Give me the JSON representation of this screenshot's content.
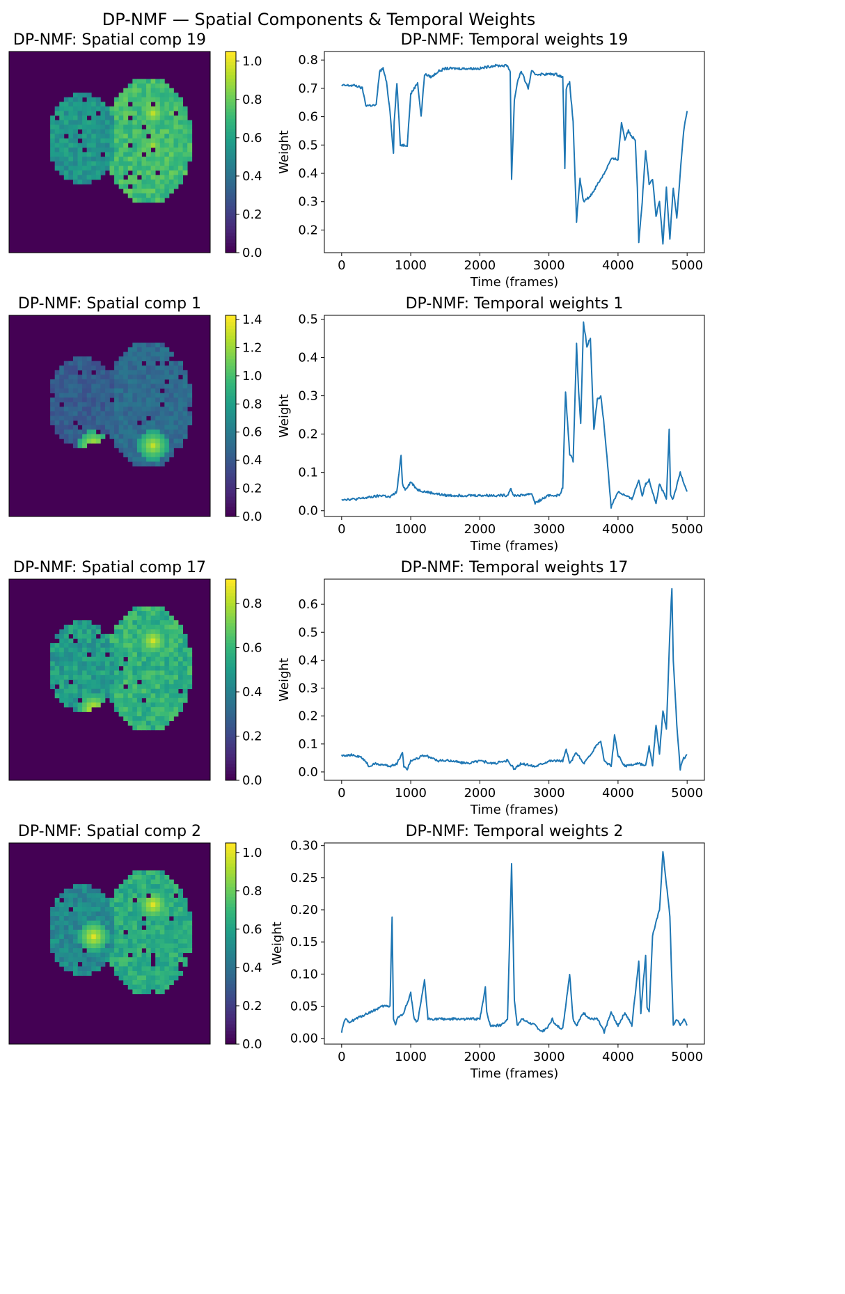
{
  "suptitle": "DP-NMF — Spatial Components & Temporal Weights",
  "colors": {
    "line": "#1f77b4",
    "background": "#440154"
  },
  "colormap": [
    "#440154",
    "#482878",
    "#3e4989",
    "#31688e",
    "#26828e",
    "#1f9e89",
    "#35b779",
    "#6ece58",
    "#b5de2b",
    "#fde725"
  ],
  "chart_data": [
    {
      "type": "heatmap",
      "title": "DP-NMF: Spatial comp 19",
      "colorbar_range": [
        0,
        1.05
      ],
      "colorbar_ticks": [
        0.0,
        0.2,
        0.4,
        0.6,
        0.8,
        1.0
      ],
      "colorbar_tick_labels": [
        "0.0",
        "0.2",
        "0.4",
        "0.6",
        "0.8",
        "1.0"
      ],
      "left_hemisphere_level": 0.55,
      "right_hemisphere_level": 0.72,
      "hotspots": [
        {
          "region": "right-upper",
          "value": 0.95
        },
        {
          "region": "right-middle",
          "value": 0.9
        }
      ]
    },
    {
      "type": "line",
      "title": "DP-NMF: Temporal weights 19",
      "xlabel": "Time (frames)",
      "ylabel": "Weight",
      "xlim": [
        -250,
        5250
      ],
      "ylim": [
        0.12,
        0.83
      ],
      "xticks": [
        0,
        1000,
        2000,
        3000,
        4000,
        5000
      ],
      "xtick_labels": [
        "0",
        "1000",
        "2000",
        "3000",
        "4000",
        "5000"
      ],
      "yticks": [
        0.2,
        0.3,
        0.4,
        0.5,
        0.6,
        0.7,
        0.8
      ],
      "ytick_labels": [
        "0.2",
        "0.3",
        "0.4",
        "0.5",
        "0.6",
        "0.7",
        "0.8"
      ],
      "series": [
        {
          "x": [
            0,
            100,
            200,
            300,
            350,
            400,
            500,
            550,
            600,
            650,
            700,
            750,
            760,
            800,
            850,
            900,
            950,
            1000,
            1050,
            1100,
            1150,
            1200,
            1300,
            1400,
            1500,
            1700,
            2000,
            2200,
            2400,
            2440,
            2460,
            2500,
            2550,
            2600,
            2700,
            2750,
            2800,
            2850,
            2900,
            3000,
            3100,
            3200,
            3230,
            3250,
            3300,
            3350,
            3400,
            3450,
            3500,
            3600,
            3700,
            3800,
            3900,
            4000,
            4050,
            4100,
            4150,
            4200,
            4250,
            4280,
            4300,
            4350,
            4400,
            4450,
            4500,
            4550,
            4600,
            4650,
            4700,
            4750,
            4800,
            4850,
            4900,
            4950,
            5000
          ],
          "y": [
            0.71,
            0.71,
            0.71,
            0.7,
            0.64,
            0.64,
            0.64,
            0.76,
            0.77,
            0.72,
            0.62,
            0.47,
            0.58,
            0.72,
            0.5,
            0.5,
            0.5,
            0.68,
            0.7,
            0.72,
            0.6,
            0.75,
            0.74,
            0.76,
            0.77,
            0.77,
            0.77,
            0.78,
            0.78,
            0.76,
            0.38,
            0.66,
            0.73,
            0.76,
            0.7,
            0.76,
            0.75,
            0.75,
            0.75,
            0.75,
            0.75,
            0.74,
            0.42,
            0.7,
            0.72,
            0.58,
            0.23,
            0.38,
            0.3,
            0.32,
            0.36,
            0.4,
            0.45,
            0.45,
            0.58,
            0.52,
            0.55,
            0.53,
            0.52,
            0.35,
            0.16,
            0.3,
            0.48,
            0.36,
            0.38,
            0.25,
            0.3,
            0.15,
            0.35,
            0.17,
            0.35,
            0.24,
            0.4,
            0.55,
            0.62
          ]
        }
      ]
    },
    {
      "type": "heatmap",
      "title": "DP-NMF: Spatial comp 1",
      "colorbar_range": [
        0,
        1.43
      ],
      "colorbar_ticks": [
        0.0,
        0.2,
        0.4,
        0.6,
        0.8,
        1.0,
        1.2,
        1.4
      ],
      "colorbar_tick_labels": [
        "0.0",
        "0.2",
        "0.4",
        "0.6",
        "0.8",
        "1.0",
        "1.2",
        "1.4"
      ],
      "left_hemisphere_level": 0.42,
      "right_hemisphere_level": 0.5,
      "hotspots": [
        {
          "region": "left-lower",
          "value": 1.35
        },
        {
          "region": "right-lower",
          "value": 1.3
        }
      ]
    },
    {
      "type": "line",
      "title": "DP-NMF: Temporal weights 1",
      "xlabel": "Time (frames)",
      "ylabel": "Weight",
      "xlim": [
        -250,
        5250
      ],
      "ylim": [
        -0.015,
        0.51
      ],
      "xticks": [
        0,
        1000,
        2000,
        3000,
        4000,
        5000
      ],
      "xtick_labels": [
        "0",
        "1000",
        "2000",
        "3000",
        "4000",
        "5000"
      ],
      "yticks": [
        0.0,
        0.1,
        0.2,
        0.3,
        0.4,
        0.5
      ],
      "ytick_labels": [
        "0.0",
        "0.1",
        "0.2",
        "0.3",
        "0.4",
        "0.5"
      ],
      "series": [
        {
          "x": [
            0,
            200,
            400,
            600,
            700,
            800,
            860,
            880,
            920,
            1000,
            1100,
            1200,
            1500,
            2000,
            2400,
            2450,
            2480,
            2600,
            2750,
            2800,
            3000,
            3150,
            3200,
            3240,
            3300,
            3350,
            3400,
            3430,
            3460,
            3500,
            3550,
            3600,
            3650,
            3700,
            3750,
            3800,
            3850,
            3900,
            4000,
            4200,
            4300,
            4350,
            4400,
            4450,
            4500,
            4550,
            4600,
            4700,
            4740,
            4760,
            4800,
            4900,
            5000
          ],
          "y": [
            0.03,
            0.03,
            0.035,
            0.04,
            0.035,
            0.05,
            0.145,
            0.07,
            0.055,
            0.075,
            0.055,
            0.05,
            0.04,
            0.04,
            0.04,
            0.06,
            0.04,
            0.04,
            0.045,
            0.02,
            0.04,
            0.04,
            0.06,
            0.31,
            0.15,
            0.13,
            0.435,
            0.31,
            0.23,
            0.49,
            0.43,
            0.45,
            0.21,
            0.29,
            0.3,
            0.22,
            0.12,
            0.01,
            0.05,
            0.03,
            0.08,
            0.04,
            0.07,
            0.08,
            0.05,
            0.02,
            0.07,
            0.03,
            0.21,
            0.04,
            0.03,
            0.1,
            0.05
          ]
        }
      ]
    },
    {
      "type": "heatmap",
      "title": "DP-NMF: Spatial comp 17",
      "colorbar_range": [
        0,
        0.91
      ],
      "colorbar_ticks": [
        0.0,
        0.2,
        0.4,
        0.6,
        0.8
      ],
      "colorbar_tick_labels": [
        "0.0",
        "0.2",
        "0.4",
        "0.6",
        "0.8"
      ],
      "left_hemisphere_level": 0.5,
      "right_hemisphere_level": 0.58,
      "hotspots": [
        {
          "region": "left-lower",
          "value": 0.88
        },
        {
          "region": "right-upper",
          "value": 0.85
        }
      ]
    },
    {
      "type": "line",
      "title": "DP-NMF: Temporal weights 17",
      "xlabel": "Time (frames)",
      "ylabel": "Weight",
      "xlim": [
        -250,
        5250
      ],
      "ylim": [
        -0.03,
        0.69
      ],
      "xticks": [
        0,
        1000,
        2000,
        3000,
        4000,
        5000
      ],
      "xtick_labels": [
        "0",
        "1000",
        "2000",
        "3000",
        "4000",
        "5000"
      ],
      "yticks": [
        0.0,
        0.1,
        0.2,
        0.3,
        0.4,
        0.5,
        0.6
      ],
      "ytick_labels": [
        "0.0",
        "0.1",
        "0.2",
        "0.3",
        "0.4",
        "0.5",
        "0.6"
      ],
      "series": [
        {
          "x": [
            0,
            150,
            300,
            400,
            500,
            700,
            800,
            880,
            900,
            950,
            1000,
            1100,
            1200,
            1400,
            1600,
            1800,
            2000,
            2200,
            2400,
            2500,
            2600,
            2800,
            3000,
            3200,
            3250,
            3300,
            3400,
            3500,
            3600,
            3700,
            3750,
            3800,
            3900,
            3950,
            4000,
            4100,
            4300,
            4400,
            4450,
            4500,
            4550,
            4600,
            4650,
            4700,
            4750,
            4780,
            4800,
            4850,
            4900,
            4950,
            5000
          ],
          "y": [
            0.06,
            0.06,
            0.05,
            0.02,
            0.03,
            0.02,
            0.03,
            0.07,
            0.02,
            0.01,
            0.04,
            0.05,
            0.06,
            0.04,
            0.04,
            0.03,
            0.04,
            0.03,
            0.04,
            0.01,
            0.03,
            0.02,
            0.04,
            0.04,
            0.08,
            0.03,
            0.07,
            0.03,
            0.06,
            0.1,
            0.11,
            0.04,
            0.02,
            0.13,
            0.06,
            0.02,
            0.03,
            0.02,
            0.09,
            0.02,
            0.17,
            0.06,
            0.22,
            0.15,
            0.5,
            0.66,
            0.4,
            0.17,
            0.01,
            0.05,
            0.06
          ]
        }
      ]
    },
    {
      "type": "heatmap",
      "title": "DP-NMF: Spatial comp 2",
      "colorbar_range": [
        0,
        1.05
      ],
      "colorbar_ticks": [
        0.0,
        0.2,
        0.4,
        0.6,
        0.8,
        1.0
      ],
      "colorbar_tick_labels": [
        "0.0",
        "0.2",
        "0.4",
        "0.6",
        "0.8",
        "1.0"
      ],
      "left_hemisphere_level": 0.5,
      "right_hemisphere_level": 0.65,
      "hotspots": [
        {
          "region": "right-upper",
          "value": 1.0
        },
        {
          "region": "left-middle",
          "value": 1.0
        }
      ]
    },
    {
      "type": "line",
      "title": "DP-NMF: Temporal weights 2",
      "xlabel": "Time (frames)",
      "ylabel": "Weight",
      "xlim": [
        -250,
        5250
      ],
      "ylim": [
        -0.009,
        0.304
      ],
      "xticks": [
        0,
        1000,
        2000,
        3000,
        4000,
        5000
      ],
      "xtick_labels": [
        "0",
        "1000",
        "2000",
        "3000",
        "4000",
        "5000"
      ],
      "yticks": [
        0.0,
        0.05,
        0.1,
        0.15,
        0.2,
        0.25,
        0.3
      ],
      "ytick_labels": [
        "0.00",
        "0.05",
        "0.10",
        "0.15",
        "0.20",
        "0.25",
        "0.30"
      ],
      "series": [
        {
          "x": [
            0,
            50,
            100,
            200,
            300,
            400,
            500,
            600,
            700,
            730,
            750,
            780,
            800,
            900,
            1000,
            1050,
            1100,
            1200,
            1250,
            1300,
            1500,
            1800,
            2000,
            2050,
            2080,
            2100,
            2150,
            2300,
            2400,
            2460,
            2500,
            2540,
            2600,
            2800,
            2900,
            3000,
            3050,
            3100,
            3200,
            3300,
            3350,
            3400,
            3500,
            3600,
            3700,
            3800,
            3900,
            4000,
            4100,
            4200,
            4300,
            4330,
            4400,
            4420,
            4450,
            4500,
            4550,
            4600,
            4650,
            4700,
            4750,
            4800,
            4850,
            4900,
            4950,
            5000
          ],
          "y": [
            0.01,
            0.03,
            0.025,
            0.03,
            0.035,
            0.04,
            0.045,
            0.05,
            0.05,
            0.19,
            0.03,
            0.02,
            0.03,
            0.04,
            0.07,
            0.03,
            0.025,
            0.09,
            0.03,
            0.03,
            0.03,
            0.03,
            0.03,
            0.06,
            0.08,
            0.04,
            0.02,
            0.02,
            0.03,
            0.27,
            0.06,
            0.02,
            0.03,
            0.02,
            0.01,
            0.02,
            0.03,
            0.02,
            0.015,
            0.1,
            0.03,
            0.02,
            0.04,
            0.03,
            0.03,
            0.01,
            0.04,
            0.02,
            0.04,
            0.02,
            0.12,
            0.04,
            0.13,
            0.05,
            0.04,
            0.16,
            0.18,
            0.2,
            0.29,
            0.24,
            0.19,
            0.02,
            0.03,
            0.02,
            0.03,
            0.02
          ]
        }
      ]
    }
  ]
}
